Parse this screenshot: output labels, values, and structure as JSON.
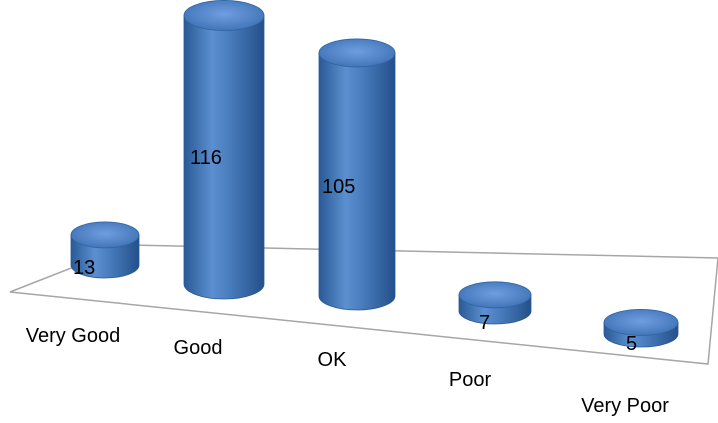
{
  "chart_data": {
    "type": "bar",
    "style": "3d-cylinder",
    "categories": [
      "Very Good",
      "Good",
      "OK",
      "Poor",
      "Very Poor"
    ],
    "values": [
      13,
      116,
      105,
      7,
      5
    ],
    "title": "",
    "xlabel": "",
    "ylabel": "",
    "grid": false,
    "legend": "none",
    "colors": {
      "bar": "#4a7ebf",
      "bar_dark": "#2a5a96",
      "bar_light": "#8fb6e6",
      "floor_stroke": "#a6a6a6"
    }
  }
}
